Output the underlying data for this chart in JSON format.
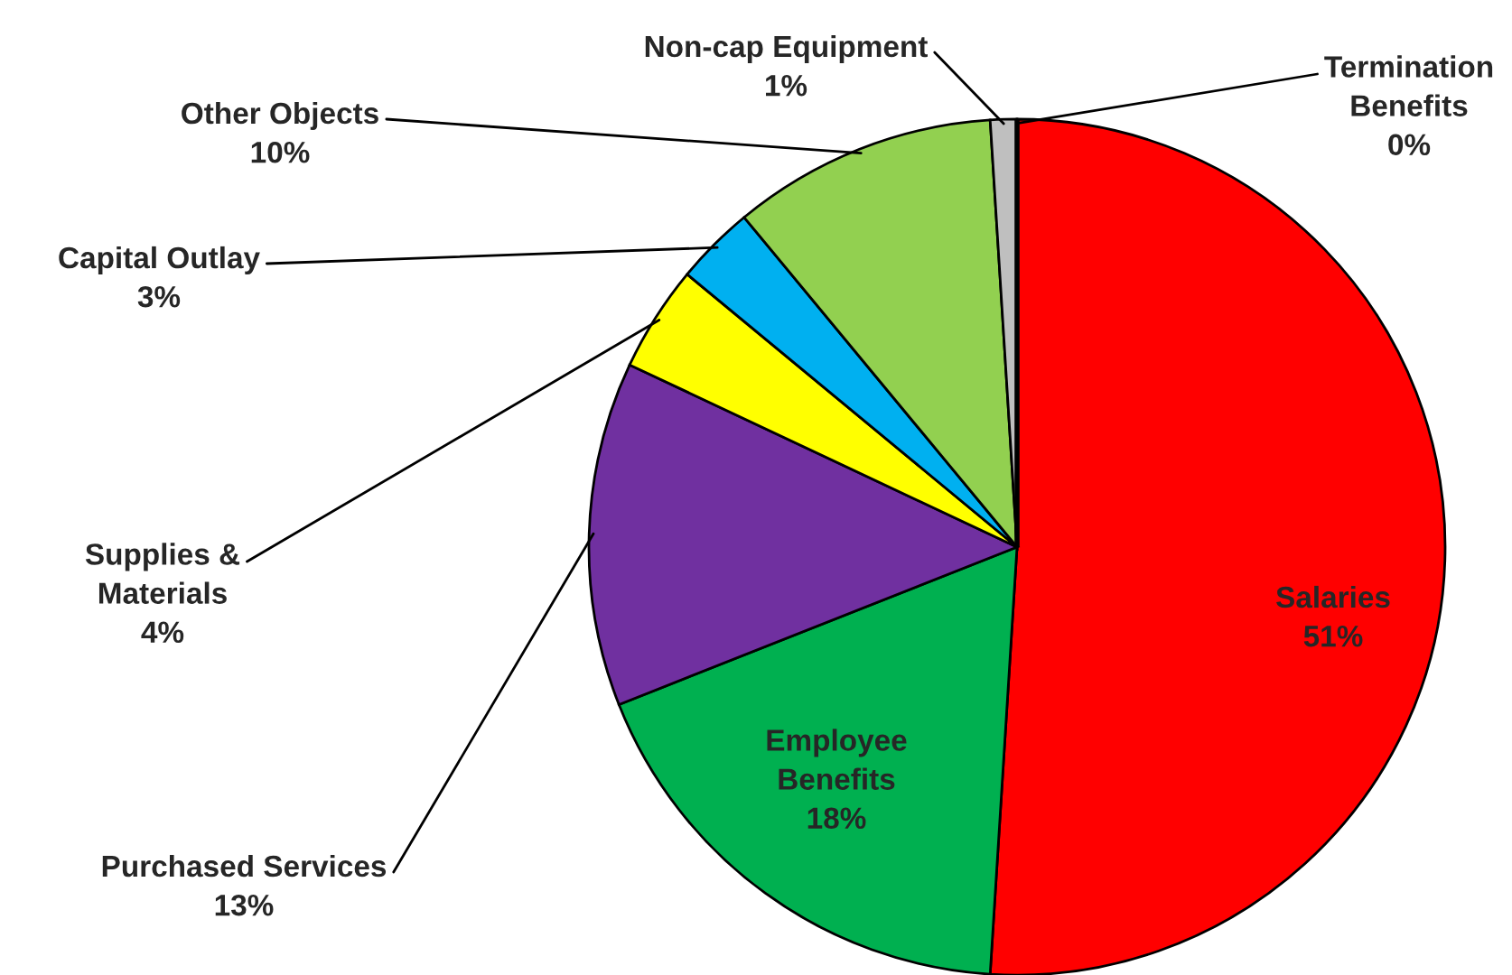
{
  "chart_data": {
    "type": "pie",
    "categories": [
      "Salaries",
      "Employee\nBenefits",
      "Purchased Services",
      "Supplies &\nMaterials",
      "Capital Outlay",
      "Other Objects",
      "Non-cap Equipment",
      "Termination\nBenefits"
    ],
    "values": [
      51,
      18,
      13,
      4,
      3,
      10,
      1,
      0
    ],
    "value_labels": [
      "51%",
      "18%",
      "13%",
      "4%",
      "3%",
      "10%",
      "1%",
      "0%"
    ],
    "colors": [
      "#ff0000",
      "#00b050",
      "#7030a0",
      "#ffff00",
      "#00b0f0",
      "#92d050",
      "#bfbfbf",
      "#404040"
    ]
  }
}
